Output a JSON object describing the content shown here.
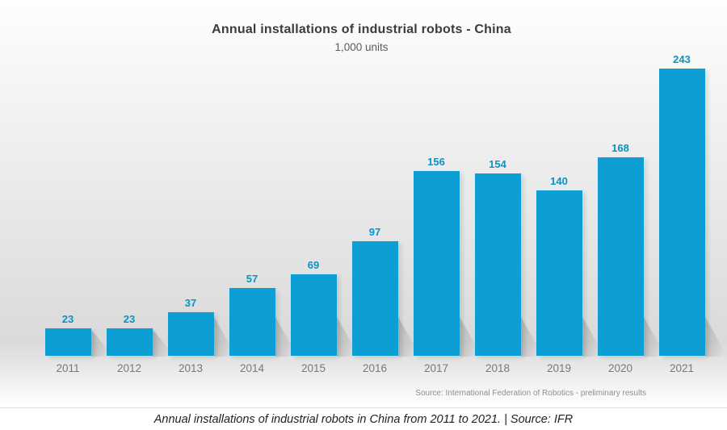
{
  "header": {
    "title": "Annual installations of industrial robots - China",
    "subtitle": "1,000 units"
  },
  "chart_data": {
    "type": "bar",
    "title": "Annual installations of industrial robots - China",
    "subtitle": "1,000 units",
    "categories": [
      "2011",
      "2012",
      "2013",
      "2014",
      "2015",
      "2016",
      "2017",
      "2018",
      "2019",
      "2020",
      "2021"
    ],
    "values": [
      23,
      23,
      37,
      57,
      69,
      97,
      156,
      154,
      140,
      168,
      243
    ],
    "xlabel": "",
    "ylabel": "",
    "value_labels_shown": true,
    "axes_shown": false,
    "grid": false,
    "legend": "none",
    "bar_color": "#0d9fd4",
    "value_label_color": "#0a93c6"
  },
  "source_note": "Source: International Federation of Robotics - preliminary results",
  "caption": "Annual installations of industrial robots in China from 2011 to 2021. | Source: IFR"
}
